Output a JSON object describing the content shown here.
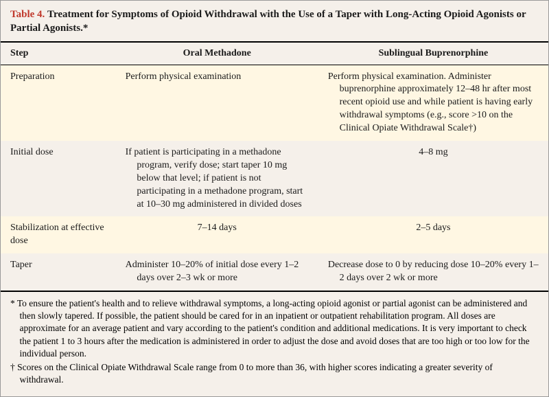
{
  "caption": {
    "number": "Table 4.",
    "text": "Treatment for Symptoms of Opioid Withdrawal with the Use of a Taper with Long-Acting Opioid Agonists or Partial Agonists.*"
  },
  "headers": {
    "step": "Step",
    "methadone": "Oral Methadone",
    "buprenorphine": "Sublingual Buprenorphine"
  },
  "rows": [
    {
      "step": "Preparation",
      "meth": "Perform physical examination",
      "bup": "Perform physical examination. Administer buprenorphine approximately 12–48 hr after most recent opioid use and while patient is having early withdrawal symptoms (e.g., score >10 on the Clinical Opiate Withdrawal Scale†)",
      "meth_centered": false,
      "bup_centered": false,
      "stripe": true
    },
    {
      "step": "Initial dose",
      "meth": "If patient is participating in a methadone program, verify dose; start taper 10 mg below that level; if patient is not participating in a methadone program, start at 10–30 mg administered in divided doses",
      "bup": "4–8 mg",
      "meth_centered": false,
      "bup_centered": true,
      "stripe": false
    },
    {
      "step": "Stabilization at effective dose",
      "meth": "7–14 days",
      "bup": "2–5 days",
      "meth_centered": true,
      "bup_centered": true,
      "stripe": true
    },
    {
      "step": "Taper",
      "meth": "Administer 10–20% of initial dose every 1–2 days over 2–3 wk or more",
      "bup": "Decrease dose to 0 by reducing dose 10–20% every 1–2 days over 2 wk or more",
      "meth_centered": false,
      "bup_centered": false,
      "stripe": false
    }
  ],
  "footnotes": [
    "* To ensure the patient's health and to relieve withdrawal symptoms, a long-acting opioid agonist or partial agonist can be administered and then slowly tapered. If possible, the patient should be cared for in an inpatient or outpatient rehabilitation program. All doses are approximate for an average patient and vary according to the patient's condition and additional medications. It is very important to check the patient 1 to 3 hours after the medication is administered in order to adjust the dose and avoid doses that are too high or too low for the individual person.",
    "† Scores on the Clinical Opiate Withdrawal Scale range from 0 to more than 36, with higher scores indicating a greater severity of withdrawal."
  ],
  "colors": {
    "stripe": "#fff7e3",
    "background": "#f5f0ea",
    "border": "#999999",
    "rule": "#000000",
    "accent": "#c0392b",
    "text": "#1a1a1a"
  }
}
